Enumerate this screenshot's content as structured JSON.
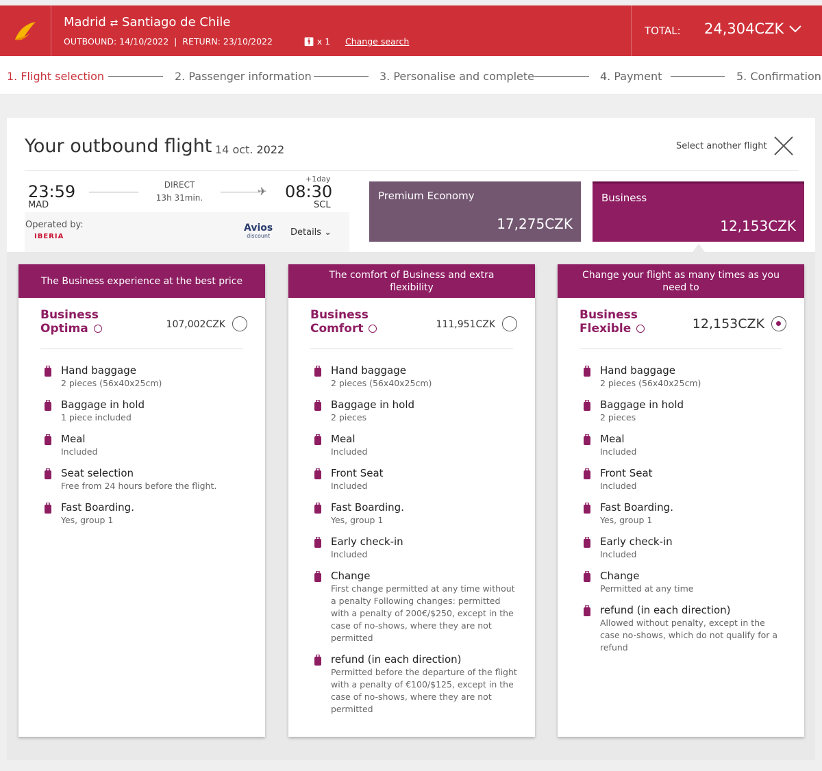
{
  "header": {
    "origin": "Madrid",
    "destination": "Santiago de Chile",
    "outbound": "OUTBOUND: 14/10/2022",
    "return": "RETURN: 23/10/2022",
    "passengers": "x 1",
    "change_search": "Change search",
    "total_label": "TOTAL:",
    "total": "24,304CZK"
  },
  "steps": [
    "1. Flight selection",
    "2. Passenger information",
    "3. Personalise and complete",
    "4. Payment",
    "5. Confirmation"
  ],
  "flight": {
    "title": "Your outbound flight",
    "date_day": "14 oct.",
    "date_year": "2022",
    "select_another": "Select another flight",
    "departure_time": "23:59",
    "departure_airport": "MAD",
    "stops": "DIRECT",
    "duration": "13h 31min.",
    "day_offset": "+1day",
    "arrival_time": "08:30",
    "arrival_airport": "SCL",
    "operated_by": "Operated by:",
    "airline": "IBERIA",
    "avios": "Avios",
    "avios_sub": "discount",
    "details": "Details"
  },
  "cabins": [
    {
      "name": "Premium Economy",
      "price": "17,275CZK",
      "selected": false
    },
    {
      "name": "Business",
      "price": "12,153CZK",
      "selected": true
    }
  ],
  "fares": [
    {
      "tagline": "The Business experience at the best price",
      "name_line1": "Business",
      "name_line2": "Optima",
      "price": "107,002CZK",
      "selected": false,
      "features": [
        {
          "title": "Hand baggage",
          "detail": "2 pieces (56x40x25cm)"
        },
        {
          "title": "Baggage in hold",
          "detail": "1 piece included"
        },
        {
          "title": "Meal",
          "detail": "Included"
        },
        {
          "title": "Seat selection",
          "detail": "Free from 24 hours before the flight."
        },
        {
          "title": "Fast Boarding.",
          "detail": "Yes, group 1"
        }
      ]
    },
    {
      "tagline": "The comfort of Business and extra flexibility",
      "name_line1": "Business",
      "name_line2": "Comfort",
      "price": "111,951CZK",
      "selected": false,
      "features": [
        {
          "title": "Hand baggage",
          "detail": "2 pieces (56x40x25cm)"
        },
        {
          "title": "Baggage in hold",
          "detail": "2 pieces"
        },
        {
          "title": "Meal",
          "detail": "Included"
        },
        {
          "title": "Front Seat",
          "detail": "Included"
        },
        {
          "title": "Fast Boarding.",
          "detail": "Yes, group 1"
        },
        {
          "title": "Early check-in",
          "detail": "Included"
        },
        {
          "title": "Change",
          "detail": "First change permitted at any time without a penalty Following changes: permitted with a penalty of 200€/$250, except in the case of no-shows, where they are not permitted"
        },
        {
          "title": "refund (in each direction)",
          "detail": "Permitted before the departure of the flight with a penalty of €100/$125, except in the case of no-shows, where they are not permitted"
        }
      ]
    },
    {
      "tagline": "Change your flight as many times as you need to",
      "name_line1": "Business",
      "name_line2": "Flexible",
      "price": "12,153CZK",
      "selected": true,
      "features": [
        {
          "title": "Hand baggage",
          "detail": "2 pieces (56x40x25cm)"
        },
        {
          "title": "Baggage in hold",
          "detail": "2 pieces"
        },
        {
          "title": "Meal",
          "detail": "Included"
        },
        {
          "title": "Front Seat",
          "detail": "Included"
        },
        {
          "title": "Fast Boarding.",
          "detail": "Yes, group 1"
        },
        {
          "title": "Early check-in",
          "detail": "Included"
        },
        {
          "title": "Change",
          "detail": "Permitted at any time"
        },
        {
          "title": "refund (in each direction)",
          "detail": "Allowed without penalty, except in the case no-shows, which do not qualify for a refund"
        }
      ]
    }
  ]
}
